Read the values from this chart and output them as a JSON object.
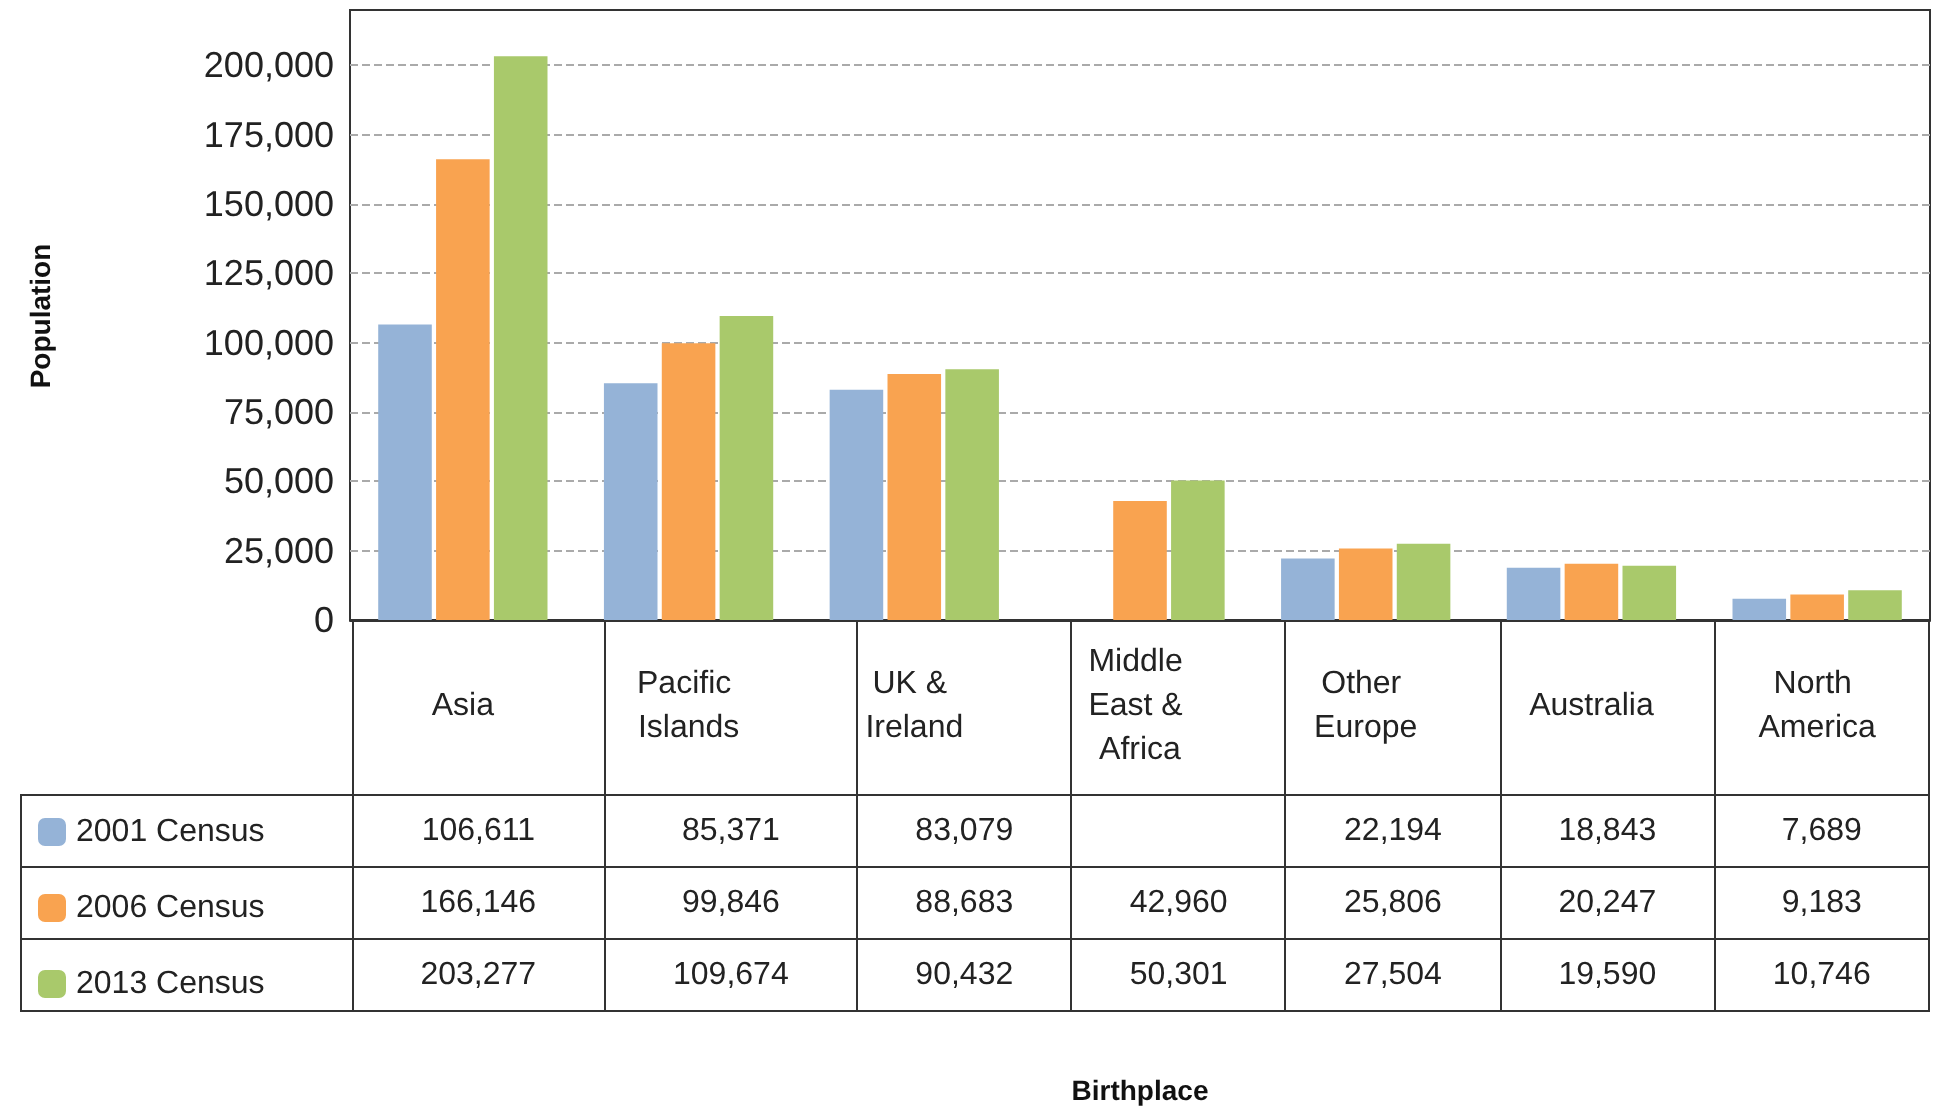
{
  "chart_data": {
    "type": "bar",
    "annotations": [
      "Population",
      "Birthplace"
    ],
    "categories": [
      "Asia",
      "Pacific Islands",
      "UK & Ireland",
      "Middle East & Africa",
      "Other Europe",
      "Australia",
      "North America"
    ],
    "series": [
      {
        "name": "2001 Census",
        "color": "#95b3d7",
        "values": [
          106611,
          85371,
          83079,
          null,
          22194,
          18843,
          7689
        ],
        "value_labels": [
          "106,611",
          "85,371",
          "83,079",
          null,
          "22,194",
          "18,843",
          "7,689"
        ]
      },
      {
        "name": "2006 Census",
        "color": "#f9a350",
        "values": [
          166146,
          99846,
          88683,
          42960,
          25806,
          20247,
          9183
        ],
        "value_labels": [
          "166,146",
          "99,846",
          "88,683",
          "42,960",
          "25,806",
          "20,247",
          "9,183"
        ]
      },
      {
        "name": "2013 Census",
        "color": "#a9c96b",
        "values": [
          203277,
          109674,
          90432,
          50301,
          27504,
          19590,
          10746
        ],
        "value_labels": [
          "203,277",
          "109,674",
          "90,432",
          "50,301",
          "27,504",
          "19,590",
          "10,746"
        ]
      }
    ],
    "ylim": [
      0,
      220000
    ],
    "yticks": [
      0,
      {
        "value": 25000,
        "label": "25,000"
      },
      {
        "value": 50000,
        "label": "50,000"
      },
      {
        "value": 75000,
        "label": "75,000"
      },
      {
        "value": 100000,
        "label": "100,000"
      },
      {
        "value": 125000,
        "label": "125,000"
      },
      {
        "value": 150000,
        "label": "150,000"
      },
      {
        "value": 175000,
        "label": "175,000"
      },
      {
        "value": 200000,
        "label": "200,000"
      }
    ],
    "grid": "y",
    "legend": "bottom left"
  }
}
